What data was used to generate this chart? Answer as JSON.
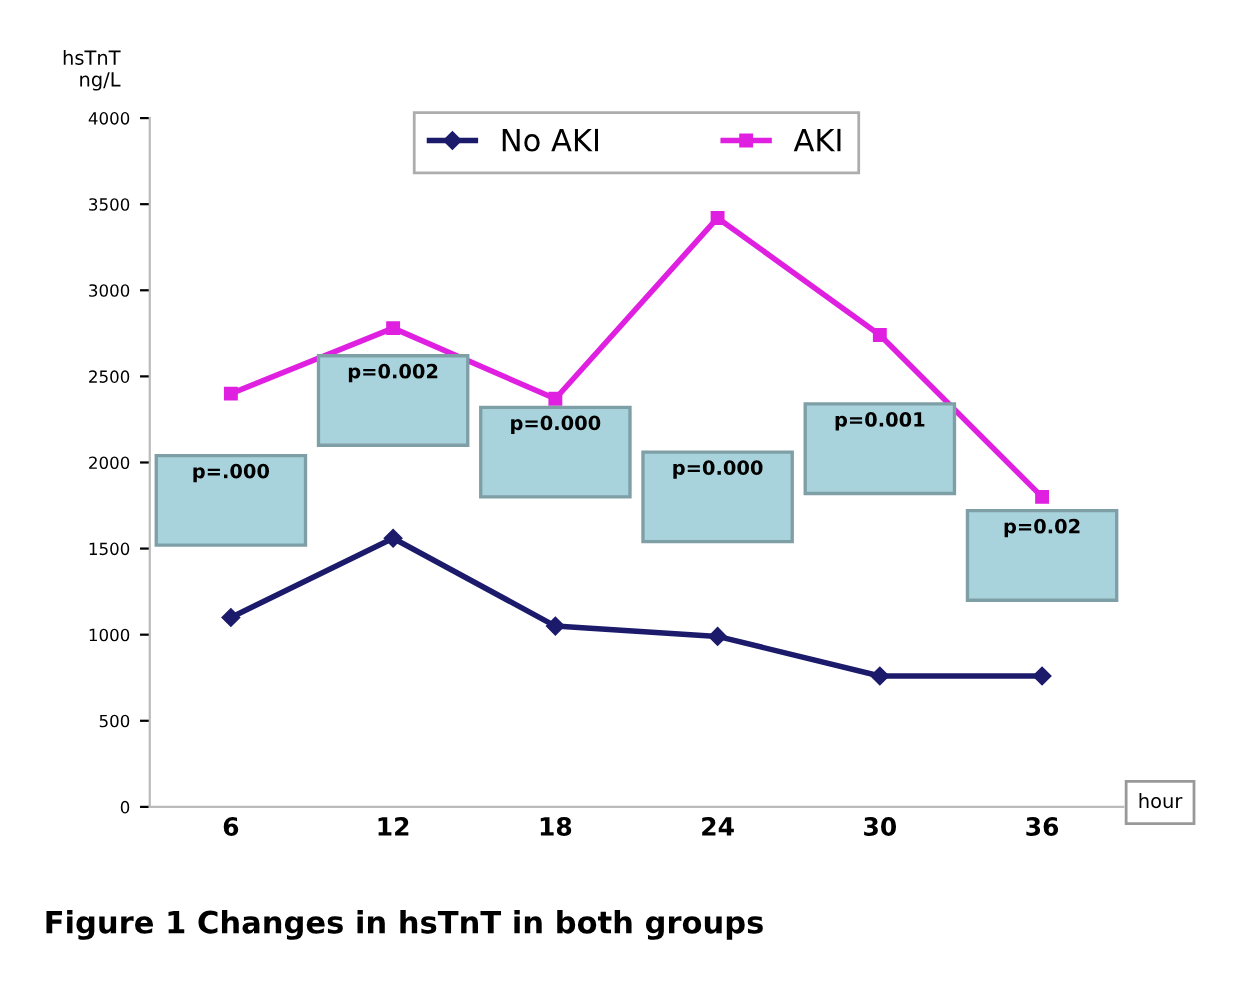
{
  "chart_data": {
    "type": "line",
    "title": "Figure 1 Changes in hsTnT in both groups",
    "ylabel": "hsTnT\nng/L",
    "xlabel": "hour",
    "categories": [
      "6",
      "12",
      "18",
      "24",
      "30",
      "36"
    ],
    "series": [
      {
        "name": "No AKI",
        "color": "#1c1a6b",
        "marker": "diamond",
        "values": [
          1100,
          1560,
          1050,
          990,
          760,
          760
        ]
      },
      {
        "name": "AKI",
        "color": "#e020e0",
        "marker": "square",
        "values": [
          2400,
          2780,
          2370,
          3420,
          2740,
          1800
        ]
      }
    ],
    "annotations": [
      "p=.000",
      "p=0.002",
      "p=0.000",
      "p=0.000",
      "p=0.001",
      "p=0.02"
    ],
    "ylim": [
      0,
      4000
    ],
    "yticks": [
      0,
      500,
      1000,
      1500,
      2000,
      2500,
      3000,
      3500,
      4000
    ],
    "grid": false,
    "legend": "top",
    "line_style": "solid"
  }
}
